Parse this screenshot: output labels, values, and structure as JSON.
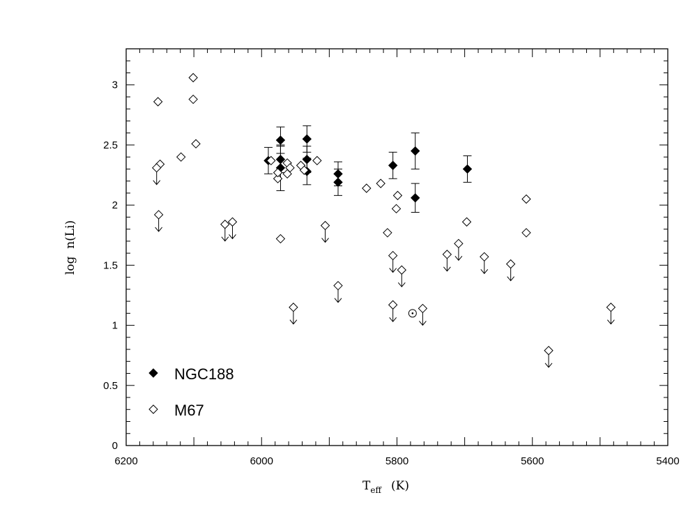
{
  "chart_data": {
    "type": "scatter",
    "xlabel": "T",
    "xlabel_sub": "eff",
    "xlabel_unit": "(K)",
    "ylabel": "log  n(Li)",
    "xlim": [
      6200,
      5400
    ],
    "ylim": [
      0,
      3.3
    ],
    "x_reversed": true,
    "xticks": [
      6200,
      6000,
      5800,
      5600,
      5400
    ],
    "yticks": [
      0,
      0.5,
      1,
      1.5,
      2,
      2.5,
      3
    ],
    "ytick_labels": [
      "0",
      "0.5",
      "1",
      "1.5",
      "2",
      "2.5",
      "3"
    ],
    "grid": false,
    "legend_position": "lower-left",
    "series": [
      {
        "name": "NGC188",
        "marker": "filled-diamond",
        "points": [
          {
            "x": 5990,
            "y": 2.37,
            "err": 0.11
          },
          {
            "x": 5972,
            "y": 2.54,
            "err": 0.11
          },
          {
            "x": 5972,
            "y": 2.38,
            "err": 0.11
          },
          {
            "x": 5972,
            "y": 2.31,
            "err": 0.19
          },
          {
            "x": 5933,
            "y": 2.55,
            "err": 0.11
          },
          {
            "x": 5933,
            "y": 2.38,
            "err": 0.11
          },
          {
            "x": 5933,
            "y": 2.28,
            "err": 0.11
          },
          {
            "x": 5887,
            "y": 2.26,
            "err": 0.1
          },
          {
            "x": 5887,
            "y": 2.19,
            "err": 0.11
          },
          {
            "x": 5806,
            "y": 2.33,
            "err": 0.11
          },
          {
            "x": 5773,
            "y": 2.45,
            "err": 0.15
          },
          {
            "x": 5773,
            "y": 2.06,
            "err": 0.12
          },
          {
            "x": 5696,
            "y": 2.3,
            "err": 0.11
          }
        ]
      },
      {
        "name": "M67",
        "marker": "open-diamond",
        "points": [
          {
            "x": 6153,
            "y": 2.86
          },
          {
            "x": 6101,
            "y": 3.06
          },
          {
            "x": 6101,
            "y": 2.88
          },
          {
            "x": 6097,
            "y": 2.51
          },
          {
            "x": 6119,
            "y": 2.4
          },
          {
            "x": 6150,
            "y": 2.34
          },
          {
            "x": 5986,
            "y": 2.37
          },
          {
            "x": 5976,
            "y": 2.22
          },
          {
            "x": 5976,
            "y": 2.27
          },
          {
            "x": 5962,
            "y": 2.35
          },
          {
            "x": 5962,
            "y": 2.26
          },
          {
            "x": 5958,
            "y": 2.31
          },
          {
            "x": 5942,
            "y": 2.33
          },
          {
            "x": 5937,
            "y": 2.29
          },
          {
            "x": 5918,
            "y": 2.37
          },
          {
            "x": 5972,
            "y": 1.72
          },
          {
            "x": 5845,
            "y": 2.14
          },
          {
            "x": 5824,
            "y": 2.18
          },
          {
            "x": 5799,
            "y": 2.08
          },
          {
            "x": 5801,
            "y": 1.97
          },
          {
            "x": 5814,
            "y": 1.77
          },
          {
            "x": 5697,
            "y": 1.86
          },
          {
            "x": 5609,
            "y": 2.05
          },
          {
            "x": 5609,
            "y": 1.77
          }
        ]
      },
      {
        "name": "M67 upper limits",
        "marker": "open-diamond-arrow",
        "points": [
          {
            "x": 6155,
            "y": 2.31
          },
          {
            "x": 6152,
            "y": 1.92
          },
          {
            "x": 6054,
            "y": 1.84
          },
          {
            "x": 6043,
            "y": 1.86
          },
          {
            "x": 5953,
            "y": 1.15
          },
          {
            "x": 5906,
            "y": 1.83
          },
          {
            "x": 5887,
            "y": 1.33
          },
          {
            "x": 5806,
            "y": 1.58
          },
          {
            "x": 5806,
            "y": 1.17
          },
          {
            "x": 5793,
            "y": 1.46
          },
          {
            "x": 5762,
            "y": 1.14
          },
          {
            "x": 5726,
            "y": 1.59
          },
          {
            "x": 5709,
            "y": 1.68
          },
          {
            "x": 5671,
            "y": 1.57
          },
          {
            "x": 5632,
            "y": 1.51
          },
          {
            "x": 5576,
            "y": 0.79
          },
          {
            "x": 5484,
            "y": 1.15
          }
        ]
      },
      {
        "name": "Sun",
        "marker": "sun",
        "points": [
          {
            "x": 5777,
            "y": 1.1
          }
        ]
      }
    ],
    "legend": [
      {
        "label": "NGC188",
        "marker": "filled-diamond"
      },
      {
        "label": "M67",
        "marker": "open-diamond"
      }
    ]
  }
}
